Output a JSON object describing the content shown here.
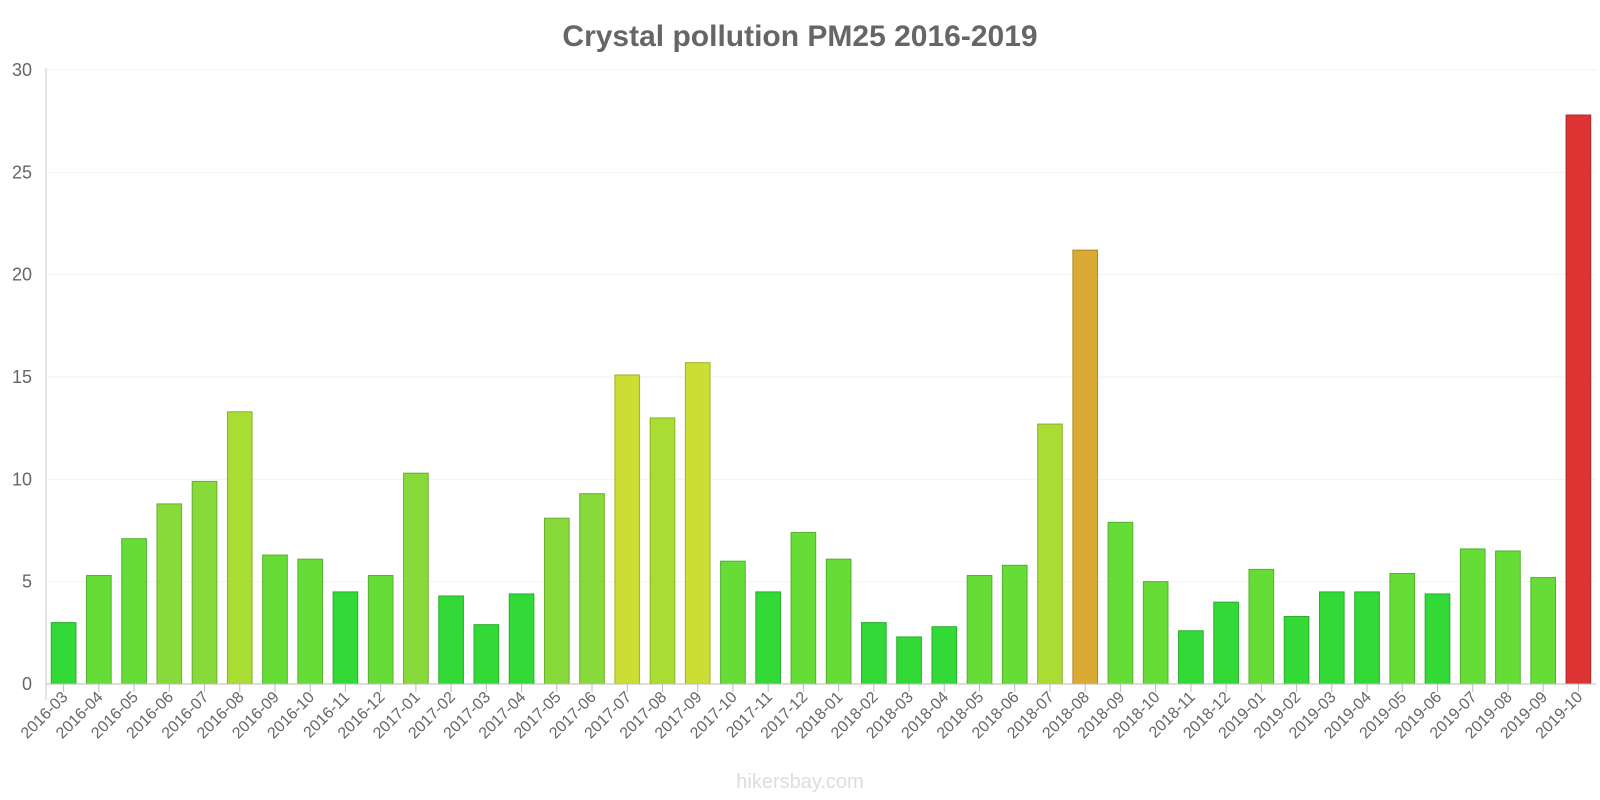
{
  "chart_data": {
    "type": "bar",
    "title": "Crystal pollution PM25 2016-2019",
    "xlabel": "",
    "ylabel": "",
    "ylim": [
      0,
      30
    ],
    "yticks": [
      0,
      5,
      10,
      15,
      20,
      25,
      30
    ],
    "grid": true,
    "categories": [
      "2016-03",
      "2016-04",
      "2016-05",
      "2016-06",
      "2016-07",
      "2016-08",
      "2016-09",
      "2016-10",
      "2016-11",
      "2016-12",
      "2017-01",
      "2017-02",
      "2017-03",
      "2017-04",
      "2017-05",
      "2017-06",
      "2017-07",
      "2017-08",
      "2017-09",
      "2017-10",
      "2017-11",
      "2017-12",
      "2018-01",
      "2018-02",
      "2018-03",
      "2018-04",
      "2018-05",
      "2018-06",
      "2018-07",
      "2018-08",
      "2018-09",
      "2018-10",
      "2018-11",
      "2018-12",
      "2019-01",
      "2019-02",
      "2019-03",
      "2019-04",
      "2019-05",
      "2019-06",
      "2019-07",
      "2019-08",
      "2019-09",
      "2019-10"
    ],
    "values": [
      3.0,
      5.3,
      7.1,
      8.8,
      9.9,
      13.3,
      6.3,
      6.1,
      4.5,
      5.3,
      10.3,
      4.3,
      2.9,
      4.4,
      8.1,
      9.3,
      15.1,
      13.0,
      15.7,
      6.0,
      4.5,
      7.4,
      6.1,
      3.0,
      2.3,
      2.8,
      5.3,
      5.8,
      12.7,
      21.2,
      7.9,
      5.0,
      2.6,
      4.0,
      5.6,
      3.3,
      4.5,
      4.5,
      5.4,
      4.4,
      6.6,
      6.5,
      5.2,
      27.8
    ],
    "colors": {
      "very_low": "#33d936",
      "low": "#66dd37",
      "moderate_low": "#88d93a",
      "moderate": "#aadd33",
      "elevated": "#ccdd33",
      "high": "#dbaa33",
      "very_high": "#dd3333"
    }
  },
  "footer": {
    "credit": "hikersbay.com"
  }
}
